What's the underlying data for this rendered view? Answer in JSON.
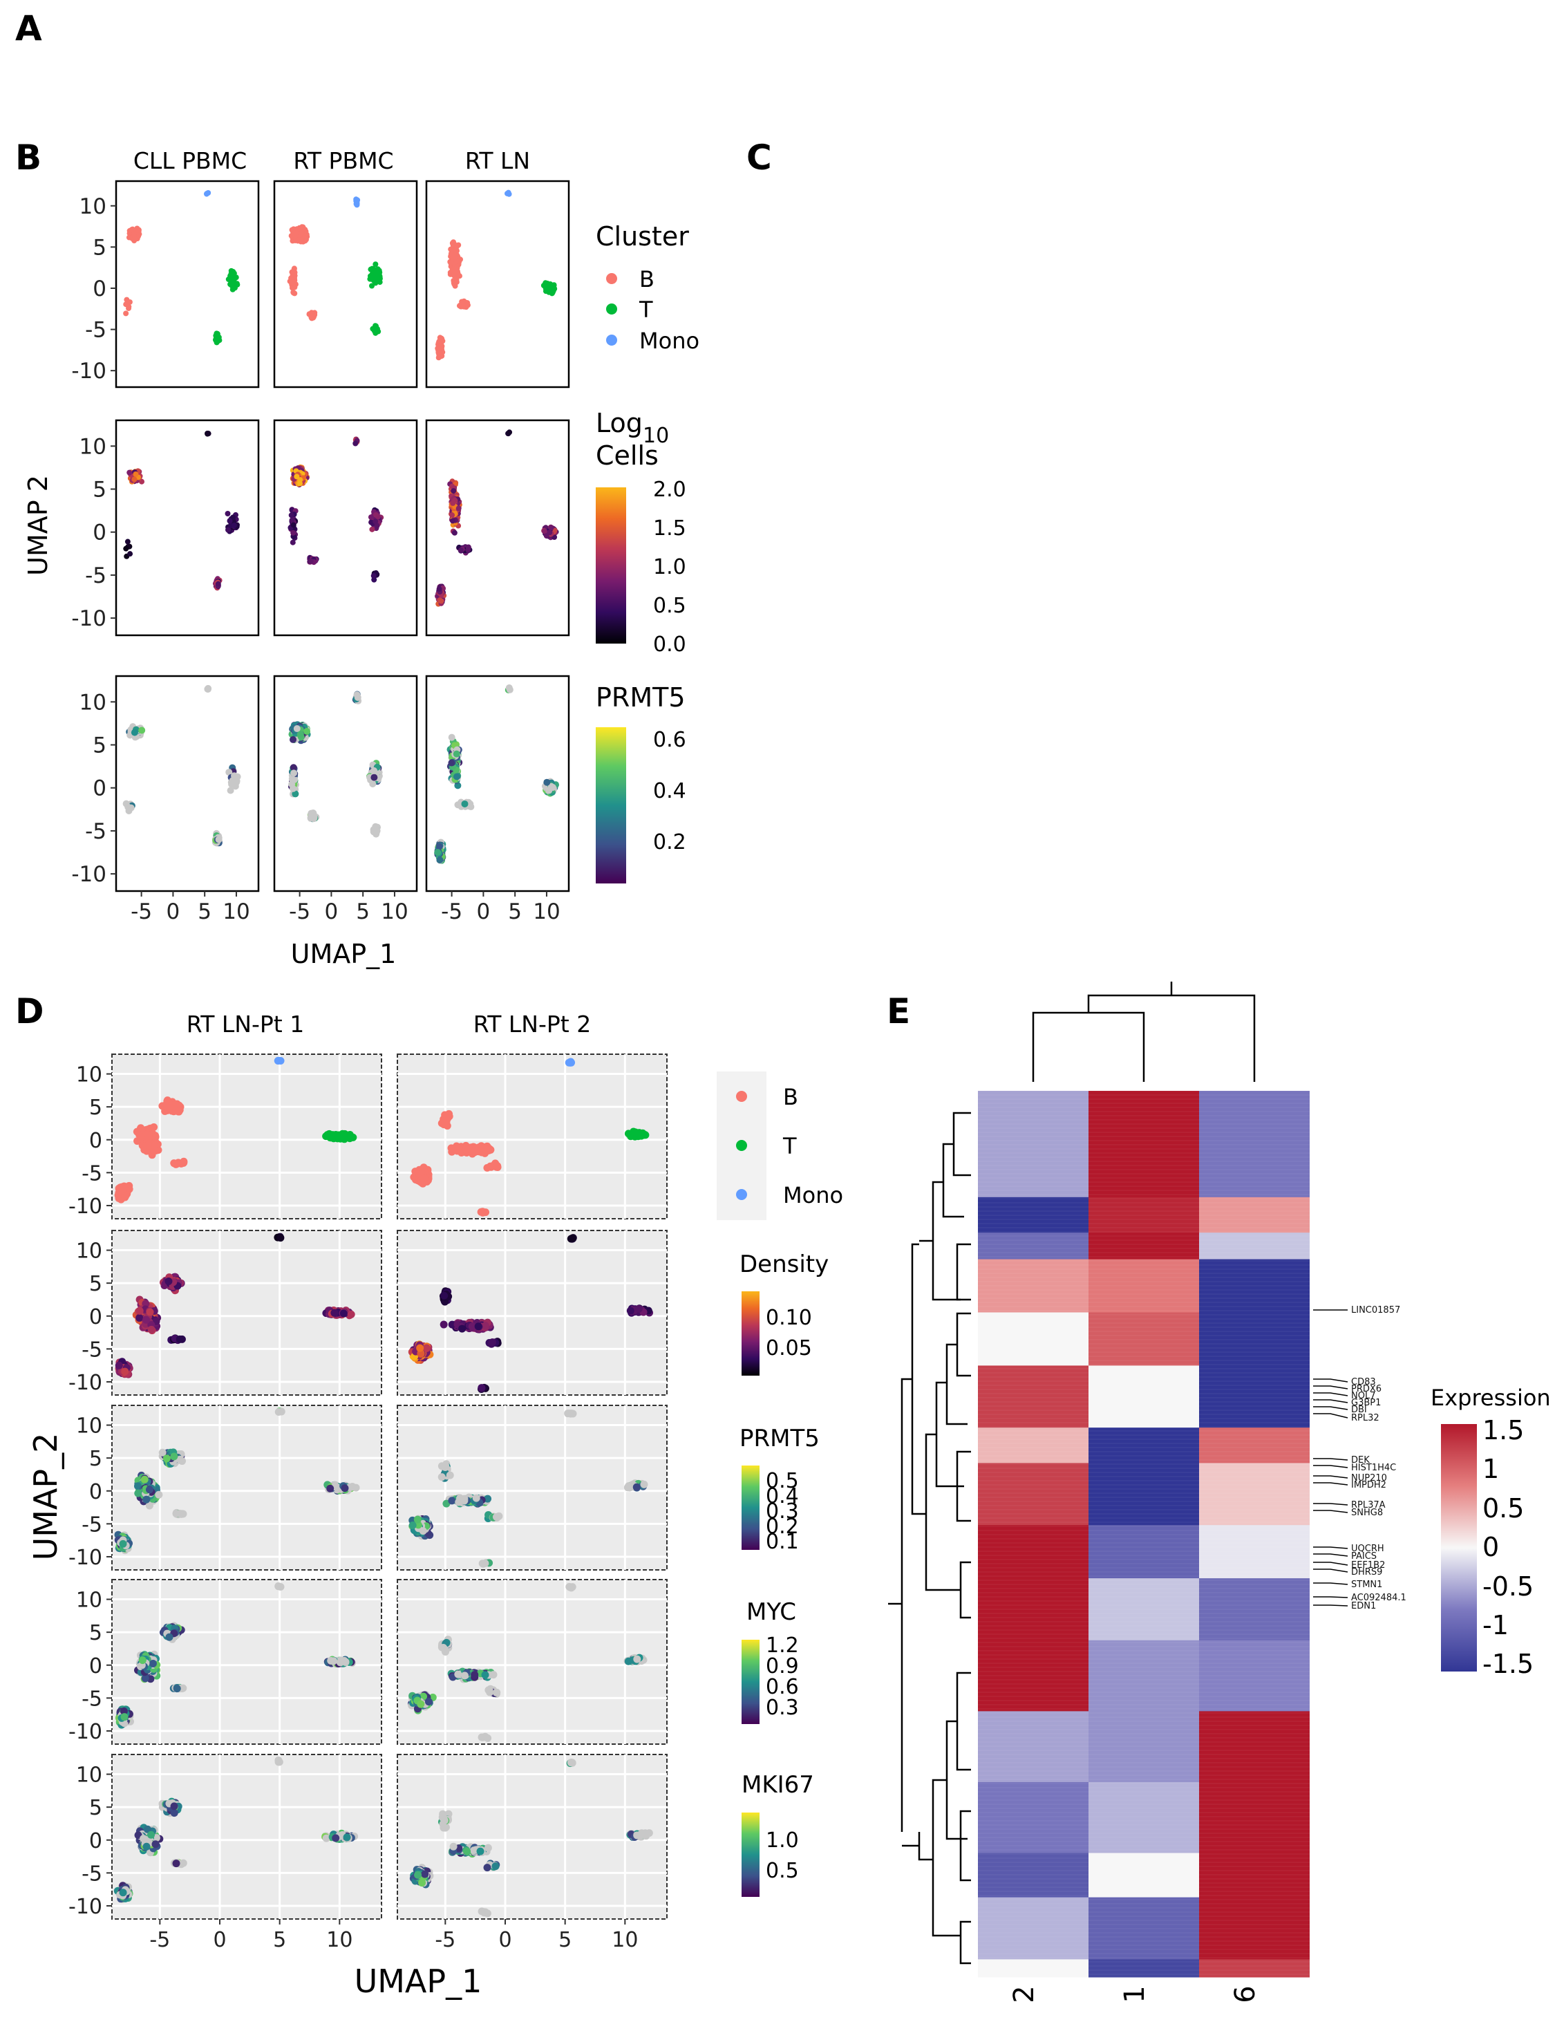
{
  "panel_letters": {
    "a": "A",
    "b": "B",
    "c": "C",
    "d": "D",
    "e": "E"
  },
  "panel_b": {
    "facets": [
      "CLL PBMC",
      "RT PBMC",
      "RT LN"
    ],
    "y_ticks": [
      "10",
      "5",
      "0",
      "-5",
      "-10"
    ],
    "x_ticks": [
      "-5",
      "0",
      "5",
      "10"
    ],
    "x_title": "UMAP_1",
    "y_title": "UMAP 2",
    "cluster_legend": {
      "title": "Cluster",
      "items": [
        {
          "label": "B",
          "color": "#F8766D"
        },
        {
          "label": "T",
          "color": "#00BA38"
        },
        {
          "label": "Mono",
          "color": "#619CFF"
        }
      ]
    },
    "density_legend": {
      "title_line1": "Log",
      "title_sub": "10",
      "title_line2": "Cells",
      "ticks": [
        "2.0",
        "1.5",
        "1.0",
        "0.5",
        "0.0"
      ],
      "colormap": "inferno"
    },
    "prmt5_legend": {
      "title": "PRMT5",
      "ticks": [
        "0.6",
        "0.4",
        "0.2"
      ],
      "colormap": "viridis"
    }
  },
  "panel_d": {
    "facets": [
      "RT LN-Pt 1",
      "RT LN-Pt 2"
    ],
    "y_ticks": [
      "10",
      "5",
      "0",
      "-5",
      "-10"
    ],
    "x_ticks": [
      "-5",
      "0",
      "5",
      "10"
    ],
    "x_title": "UMAP_1",
    "y_title": "UMAP_2",
    "cluster_legend": {
      "items": [
        {
          "label": "B",
          "color": "#F8766D"
        },
        {
          "label": "T",
          "color": "#00BA38"
        },
        {
          "label": "Mono",
          "color": "#619CFF"
        }
      ]
    },
    "density_legend": {
      "title": "Density",
      "ticks": [
        "0.10",
        "0.05"
      ]
    },
    "prmt5_legend": {
      "title": "PRMT5",
      "ticks": [
        "0.5",
        "0.4",
        "0.3",
        "0.2",
        "0.1"
      ]
    },
    "myc_legend": {
      "title": "MYC",
      "ticks": [
        "1.2",
        "0.9",
        "0.6",
        "0.3"
      ]
    },
    "mki67_legend": {
      "title": "MKI67",
      "ticks": [
        "1.0",
        "0.5"
      ]
    }
  },
  "panel_e": {
    "columns": [
      "2",
      "1",
      "6"
    ],
    "legend": {
      "title": "Expression",
      "ticks": [
        "1.5",
        "1",
        "0.5",
        "0",
        "-0.5",
        "-1",
        "-1.5"
      ]
    },
    "gene_labels": [
      "LINC01857",
      "CD83",
      "PRDX6",
      "NOL7",
      "G3BP1",
      "DBI",
      "RPL32",
      "DEK",
      "HIST1H4C",
      "NUP210",
      "IMPDH2",
      "RPL37A",
      "SNHG8",
      "UQCRH",
      "PAICS",
      "EEF1B2",
      "DHRS9",
      "STMN1",
      "AC092484.1",
      "EDN1"
    ]
  }
}
